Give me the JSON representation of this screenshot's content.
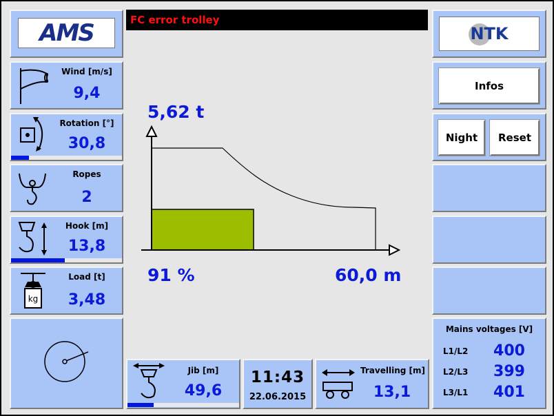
{
  "header": {
    "error": "FC error trolley"
  },
  "logos": {
    "left": "AMS",
    "right": "NTK"
  },
  "left_panels": {
    "wind": {
      "label": "Wind [m/s]",
      "value": "9,4"
    },
    "rotation": {
      "label": "Rotation [°]",
      "value": "30,8"
    },
    "ropes": {
      "label": "Ropes",
      "value": 2
    },
    "hook": {
      "label": "Hook [m]",
      "value": "13,8"
    },
    "load": {
      "label": "Load [t]",
      "value": "3,48"
    }
  },
  "buttons": {
    "infos": "Infos",
    "night": "Night",
    "reset": "Reset"
  },
  "diagram": {
    "max_load": "5,62 t",
    "utilization": "91 %",
    "radius": "60,0 m"
  },
  "mains": {
    "title": "Mains voltages [V]",
    "rows": [
      [
        "L1/L2",
        400
      ],
      [
        "L2/L3",
        399
      ],
      [
        "L3/L1",
        401
      ]
    ]
  },
  "bottom": {
    "jib": {
      "label": "Jib [m]",
      "value": "49,6"
    },
    "clock": {
      "time": "11:43",
      "date": "22.06.2015"
    },
    "travelling": {
      "label": "Travelling [m]",
      "value": "13,1"
    }
  }
}
